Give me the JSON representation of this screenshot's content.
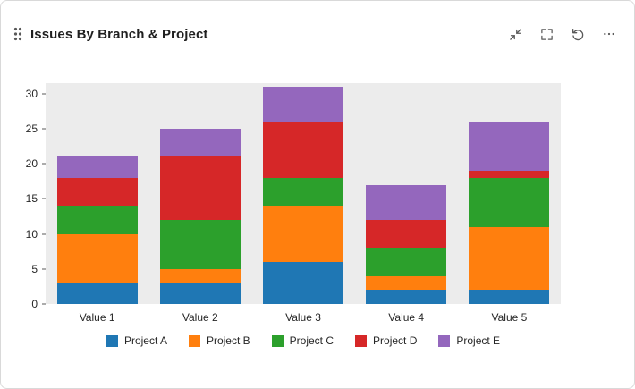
{
  "header": {
    "title": "Issues By Branch & Project",
    "icons": [
      "drag-handle",
      "collapse",
      "fullscreen",
      "refresh",
      "more"
    ]
  },
  "chart_data": {
    "type": "bar",
    "stacked": true,
    "title": "",
    "xlabel": "",
    "ylabel": "",
    "categories": [
      "Value 1",
      "Value 2",
      "Value 3",
      "Value 4",
      "Value 5"
    ],
    "series": [
      {
        "name": "Project A",
        "color": "#1f77b4",
        "values": [
          3,
          3,
          6,
          2,
          2
        ]
      },
      {
        "name": "Project B",
        "color": "#ff7f0e",
        "values": [
          7,
          2,
          8,
          2,
          9
        ]
      },
      {
        "name": "Project C",
        "color": "#2ca02c",
        "values": [
          4,
          7,
          4,
          4,
          7
        ]
      },
      {
        "name": "Project D",
        "color": "#d62728",
        "values": [
          4,
          9,
          8,
          4,
          1
        ]
      },
      {
        "name": "Project E",
        "color": "#9467bd",
        "values": [
          3,
          4,
          5,
          5,
          7
        ]
      }
    ],
    "totals": [
      21,
      25,
      31,
      17,
      26
    ],
    "ylim": [
      0,
      31.5
    ],
    "yticks": [
      0,
      5,
      10,
      15,
      20,
      25,
      30
    ],
    "grid": false,
    "legend_position": "bottom",
    "plot_background": "#ececec"
  }
}
